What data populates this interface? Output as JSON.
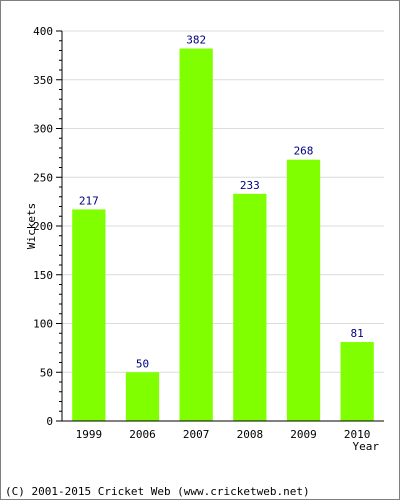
{
  "chart_data": {
    "type": "bar",
    "categories": [
      "1999",
      "2006",
      "2007",
      "2008",
      "2009",
      "2010"
    ],
    "values": [
      217,
      50,
      382,
      233,
      268,
      81
    ],
    "data_labels": [
      "217",
      "50",
      "382",
      "233",
      "268",
      "81"
    ],
    "xlabel": "Year",
    "ylabel": "Wickets",
    "ylim": [
      0,
      400
    ],
    "yticks": [
      "0",
      "50",
      "100",
      "150",
      "200",
      "250",
      "300",
      "350",
      "400"
    ],
    "grid": true,
    "legend": "none"
  },
  "colors": {
    "bar": "#80ff00",
    "data_label": "#000080",
    "axis_text": "#000000",
    "grid": "#dcdcdc",
    "frame": "#7f7f7f"
  },
  "footer": {
    "copyright": "(C) 2001-2015 Cricket Web (www.cricketweb.net)"
  }
}
